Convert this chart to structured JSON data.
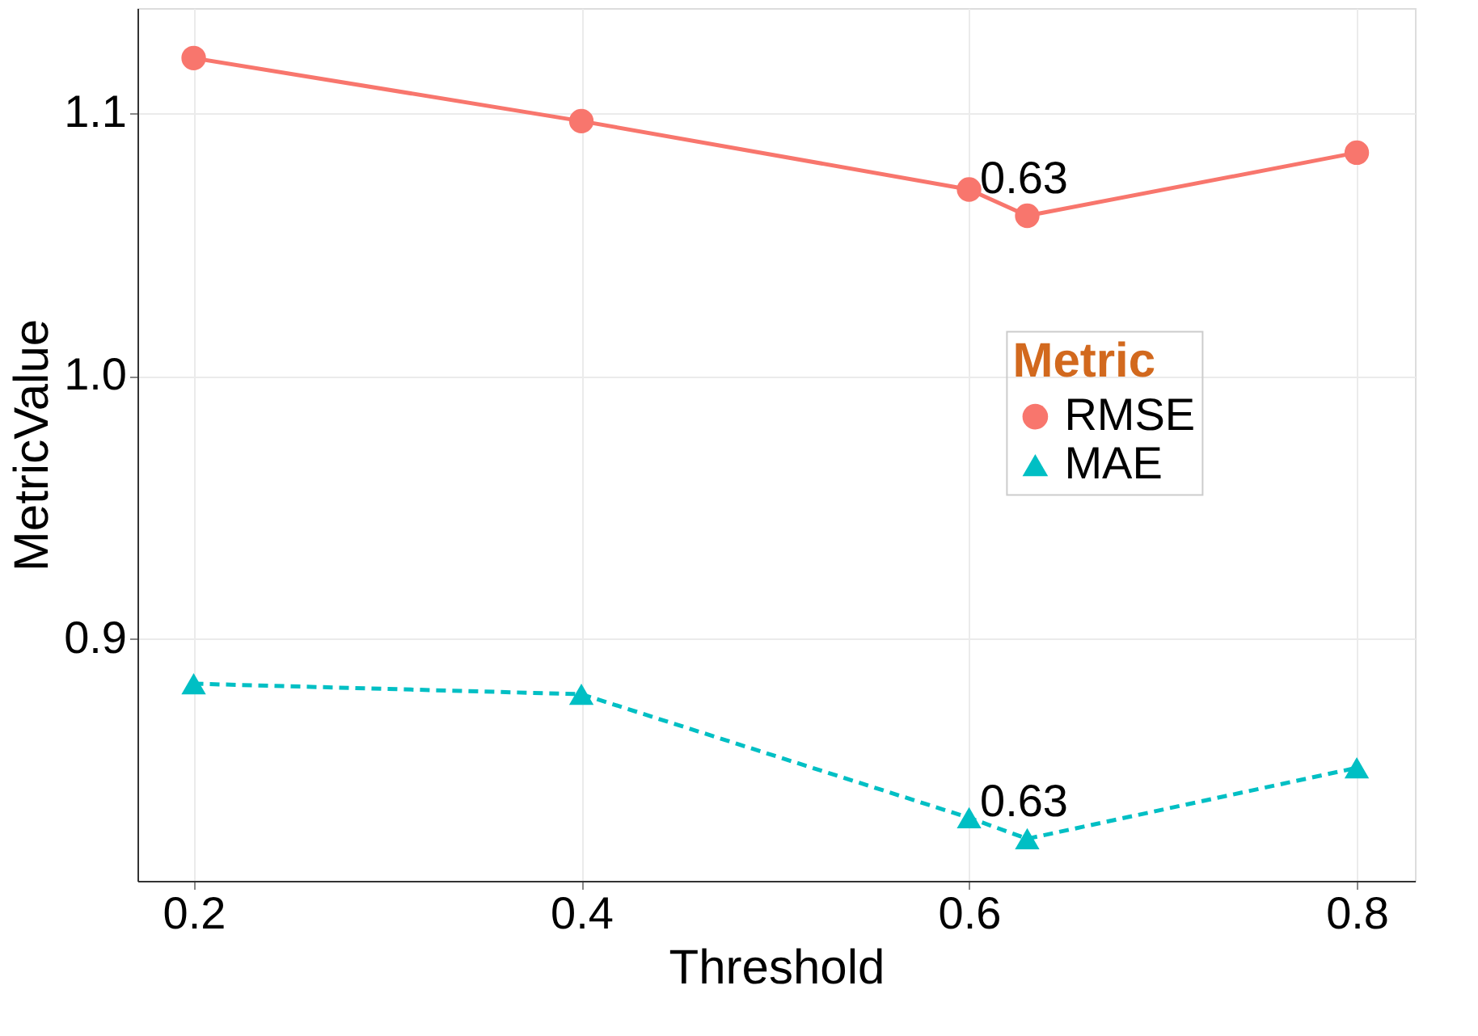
{
  "chart_data": {
    "type": "line",
    "xlabel": "Threshold",
    "ylabel": "MetricValue",
    "legend_title": "Metric",
    "x": [
      0.2,
      0.4,
      0.6,
      0.63,
      0.8
    ],
    "series": [
      {
        "name": "RMSE",
        "color": "#f8766d",
        "values": [
          1.121,
          1.097,
          1.071,
          1.061,
          1.085
        ],
        "marker": "circle",
        "line_style": "solid"
      },
      {
        "name": "MAE",
        "color": "#00bfc4",
        "values": [
          0.883,
          0.879,
          0.832,
          0.824,
          0.851
        ],
        "marker": "triangle",
        "line_style": "dashed"
      }
    ],
    "xlim": [
      0.171,
      0.83
    ],
    "xticks": [
      0.2,
      0.4,
      0.6,
      0.8
    ],
    "ylim": [
      0.808,
      1.14
    ],
    "yticks": [
      0.9,
      {
        "value": 1.0,
        "label": "1.0"
      },
      1.1
    ],
    "annotations": [
      {
        "text": "0.63",
        "x": 0.63,
        "y": 1.061
      },
      {
        "text": "0.63",
        "x": 0.63,
        "y": 0.824
      }
    ],
    "grid": true,
    "legend": "right"
  }
}
